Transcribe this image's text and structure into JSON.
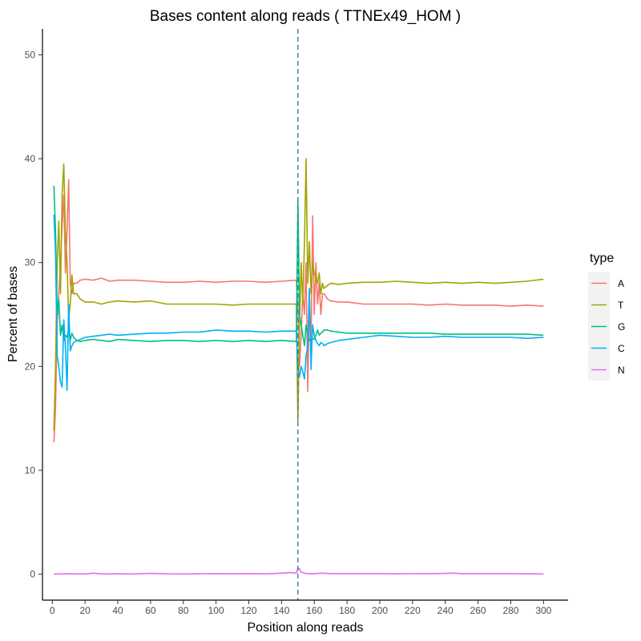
{
  "chart_data": {
    "type": "line",
    "title": "Bases content along reads ( TTNEx49_HOM )",
    "xlabel": "Position along reads",
    "ylabel": "Percent of bases",
    "xlim": [
      -6,
      315
    ],
    "ylim": [
      -2.5,
      52.5
    ],
    "xticks": [
      0,
      20,
      40,
      60,
      80,
      100,
      120,
      140,
      160,
      180,
      200,
      220,
      240,
      260,
      280,
      300
    ],
    "yticks": [
      0,
      10,
      20,
      30,
      40,
      50
    ],
    "grid": false,
    "legend": {
      "title": "type",
      "position": "right"
    },
    "vline": {
      "x": 150,
      "style": "dashed",
      "color": "#3a7fa8"
    },
    "series": [
      {
        "name": "A",
        "color": "#F8766D",
        "points": [
          [
            1,
            12.7
          ],
          [
            2,
            16
          ],
          [
            3,
            24
          ],
          [
            4,
            27
          ],
          [
            5,
            30
          ],
          [
            6,
            33.5
          ],
          [
            7,
            36.5
          ],
          [
            8,
            29
          ],
          [
            9,
            33
          ],
          [
            10,
            38
          ],
          [
            11,
            28
          ],
          [
            12,
            27
          ],
          [
            13,
            28
          ],
          [
            15,
            28
          ],
          [
            17,
            28.3
          ],
          [
            20,
            28.4
          ],
          [
            25,
            28.3
          ],
          [
            30,
            28.5
          ],
          [
            35,
            28.2
          ],
          [
            40,
            28.3
          ],
          [
            50,
            28.3
          ],
          [
            60,
            28.2
          ],
          [
            70,
            28.1
          ],
          [
            80,
            28.1
          ],
          [
            90,
            28.2
          ],
          [
            100,
            28.1
          ],
          [
            110,
            28.2
          ],
          [
            120,
            28.2
          ],
          [
            130,
            28.1
          ],
          [
            140,
            28.2
          ],
          [
            149,
            28.3
          ],
          [
            150,
            26
          ],
          [
            151,
            20
          ],
          [
            152,
            23
          ],
          [
            153,
            27
          ],
          [
            154,
            25
          ],
          [
            155,
            30
          ],
          [
            156,
            17.6
          ],
          [
            157,
            26
          ],
          [
            158,
            22
          ],
          [
            159,
            34.5
          ],
          [
            160,
            25
          ],
          [
            161,
            30
          ],
          [
            162,
            26
          ],
          [
            163,
            28
          ],
          [
            164,
            25
          ],
          [
            165,
            27
          ],
          [
            166,
            27
          ],
          [
            168,
            26.5
          ],
          [
            170,
            26.3
          ],
          [
            175,
            26.2
          ],
          [
            180,
            26.2
          ],
          [
            190,
            26
          ],
          [
            200,
            26
          ],
          [
            210,
            26
          ],
          [
            220,
            26
          ],
          [
            230,
            25.9
          ],
          [
            240,
            26
          ],
          [
            250,
            25.9
          ],
          [
            260,
            25.9
          ],
          [
            270,
            25.9
          ],
          [
            280,
            25.8
          ],
          [
            290,
            25.9
          ],
          [
            300,
            25.8
          ]
        ]
      },
      {
        "name": "T",
        "color": "#A3A500",
        "points": [
          [
            1,
            13.8
          ],
          [
            2,
            20
          ],
          [
            3,
            30
          ],
          [
            4,
            34
          ],
          [
            5,
            27
          ],
          [
            6,
            36.5
          ],
          [
            7,
            39.5
          ],
          [
            8,
            33
          ],
          [
            9,
            30
          ],
          [
            10,
            24.5
          ],
          [
            11,
            26
          ],
          [
            12,
            28.8
          ],
          [
            13,
            27
          ],
          [
            15,
            27
          ],
          [
            17,
            26.5
          ],
          [
            20,
            26.2
          ],
          [
            25,
            26.2
          ],
          [
            30,
            26
          ],
          [
            35,
            26.2
          ],
          [
            40,
            26.3
          ],
          [
            50,
            26.2
          ],
          [
            60,
            26.3
          ],
          [
            70,
            26
          ],
          [
            80,
            26
          ],
          [
            90,
            26
          ],
          [
            100,
            26
          ],
          [
            110,
            25.9
          ],
          [
            120,
            26
          ],
          [
            130,
            26
          ],
          [
            140,
            26
          ],
          [
            149,
            26
          ],
          [
            150,
            14.7
          ],
          [
            151,
            24
          ],
          [
            152,
            30
          ],
          [
            153,
            26
          ],
          [
            154,
            32
          ],
          [
            155,
            40
          ],
          [
            156,
            28
          ],
          [
            157,
            32
          ],
          [
            158,
            27
          ],
          [
            159,
            30
          ],
          [
            160,
            29
          ],
          [
            161,
            28.5
          ],
          [
            162,
            28
          ],
          [
            163,
            29
          ],
          [
            164,
            27
          ],
          [
            165,
            28
          ],
          [
            166,
            27.5
          ],
          [
            168,
            27.8
          ],
          [
            170,
            28
          ],
          [
            175,
            27.9
          ],
          [
            180,
            28
          ],
          [
            190,
            28.1
          ],
          [
            200,
            28.1
          ],
          [
            210,
            28.2
          ],
          [
            220,
            28.1
          ],
          [
            230,
            28
          ],
          [
            240,
            28.1
          ],
          [
            250,
            28
          ],
          [
            260,
            28.1
          ],
          [
            270,
            28
          ],
          [
            280,
            28.1
          ],
          [
            290,
            28.2
          ],
          [
            300,
            28.4
          ]
        ]
      },
      {
        "name": "G",
        "color": "#00BF7D",
        "points": [
          [
            1,
            37.4
          ],
          [
            2,
            33
          ],
          [
            3,
            25
          ],
          [
            4,
            26.5
          ],
          [
            5,
            23
          ],
          [
            6,
            24
          ],
          [
            7,
            22.5
          ],
          [
            8,
            23
          ],
          [
            9,
            22.8
          ],
          [
            10,
            23.5
          ],
          [
            11,
            22.5
          ],
          [
            12,
            23.2
          ],
          [
            13,
            22.8
          ],
          [
            15,
            22.5
          ],
          [
            17,
            22.4
          ],
          [
            20,
            22.5
          ],
          [
            25,
            22.6
          ],
          [
            30,
            22.5
          ],
          [
            35,
            22.4
          ],
          [
            40,
            22.6
          ],
          [
            50,
            22.5
          ],
          [
            60,
            22.4
          ],
          [
            70,
            22.5
          ],
          [
            80,
            22.5
          ],
          [
            90,
            22.4
          ],
          [
            100,
            22.5
          ],
          [
            110,
            22.4
          ],
          [
            120,
            22.5
          ],
          [
            130,
            22.4
          ],
          [
            140,
            22.5
          ],
          [
            149,
            22.4
          ],
          [
            150,
            36
          ],
          [
            151,
            25
          ],
          [
            152,
            24
          ],
          [
            153,
            23
          ],
          [
            154,
            22
          ],
          [
            155,
            24
          ],
          [
            156,
            23
          ],
          [
            157,
            22.5
          ],
          [
            158,
            22.5
          ],
          [
            159,
            22.7
          ],
          [
            160,
            22.6
          ],
          [
            161,
            23
          ],
          [
            162,
            23.5
          ],
          [
            163,
            23
          ],
          [
            164,
            23.2
          ],
          [
            165,
            23.3
          ],
          [
            166,
            23.5
          ],
          [
            168,
            23.5
          ],
          [
            170,
            23.4
          ],
          [
            175,
            23.3
          ],
          [
            180,
            23.2
          ],
          [
            190,
            23.2
          ],
          [
            200,
            23.2
          ],
          [
            210,
            23.2
          ],
          [
            220,
            23.2
          ],
          [
            230,
            23.2
          ],
          [
            240,
            23.1
          ],
          [
            250,
            23.1
          ],
          [
            260,
            23.1
          ],
          [
            270,
            23.1
          ],
          [
            280,
            23.1
          ],
          [
            290,
            23.1
          ],
          [
            300,
            23
          ]
        ]
      },
      {
        "name": "C",
        "color": "#00B0F6",
        "points": [
          [
            1,
            34.6
          ],
          [
            2,
            31
          ],
          [
            3,
            21
          ],
          [
            4,
            20
          ],
          [
            5,
            18.5
          ],
          [
            6,
            18
          ],
          [
            7,
            24.5
          ],
          [
            8,
            22
          ],
          [
            9,
            17.7
          ],
          [
            10,
            26
          ],
          [
            11,
            21.5
          ],
          [
            12,
            22
          ],
          [
            13,
            22.3
          ],
          [
            15,
            22.5
          ],
          [
            17,
            22.6
          ],
          [
            20,
            22.8
          ],
          [
            25,
            22.9
          ],
          [
            30,
            23
          ],
          [
            35,
            23.1
          ],
          [
            40,
            23
          ],
          [
            50,
            23.1
          ],
          [
            60,
            23.2
          ],
          [
            70,
            23.2
          ],
          [
            80,
            23.3
          ],
          [
            90,
            23.3
          ],
          [
            100,
            23.5
          ],
          [
            110,
            23.4
          ],
          [
            120,
            23.4
          ],
          [
            130,
            23.3
          ],
          [
            140,
            23.4
          ],
          [
            149,
            23.4
          ],
          [
            150,
            20
          ],
          [
            151,
            19
          ],
          [
            152,
            20
          ],
          [
            153,
            19.5
          ],
          [
            154,
            18.8
          ],
          [
            155,
            21
          ],
          [
            156,
            22
          ],
          [
            157,
            27.5
          ],
          [
            158,
            19.7
          ],
          [
            159,
            24
          ],
          [
            160,
            23
          ],
          [
            161,
            22.5
          ],
          [
            162,
            22.2
          ],
          [
            163,
            22
          ],
          [
            164,
            22.3
          ],
          [
            165,
            22.2
          ],
          [
            166,
            22
          ],
          [
            168,
            22.2
          ],
          [
            170,
            22.3
          ],
          [
            175,
            22.5
          ],
          [
            180,
            22.6
          ],
          [
            190,
            22.8
          ],
          [
            200,
            23
          ],
          [
            210,
            22.9
          ],
          [
            220,
            22.8
          ],
          [
            230,
            22.8
          ],
          [
            240,
            22.9
          ],
          [
            250,
            22.8
          ],
          [
            260,
            22.8
          ],
          [
            270,
            22.8
          ],
          [
            280,
            22.8
          ],
          [
            290,
            22.7
          ],
          [
            300,
            22.8
          ]
        ]
      },
      {
        "name": "N",
        "color": "#E76BF3",
        "points": [
          [
            1,
            0.02
          ],
          [
            10,
            0.03
          ],
          [
            20,
            0.02
          ],
          [
            25,
            0.1
          ],
          [
            30,
            0.02
          ],
          [
            40,
            0.03
          ],
          [
            50,
            0.02
          ],
          [
            60,
            0.08
          ],
          [
            70,
            0.03
          ],
          [
            80,
            0.02
          ],
          [
            90,
            0.03
          ],
          [
            100,
            0.05
          ],
          [
            110,
            0.03
          ],
          [
            120,
            0.05
          ],
          [
            130,
            0.03
          ],
          [
            140,
            0.1
          ],
          [
            145,
            0.15
          ],
          [
            149,
            0.1
          ],
          [
            150,
            0.6
          ],
          [
            151,
            0.5
          ],
          [
            152,
            0.2
          ],
          [
            155,
            0.05
          ],
          [
            160,
            0.05
          ],
          [
            165,
            0.1
          ],
          [
            170,
            0.05
          ],
          [
            180,
            0.05
          ],
          [
            190,
            0.05
          ],
          [
            200,
            0.05
          ],
          [
            210,
            0.03
          ],
          [
            220,
            0.05
          ],
          [
            230,
            0.05
          ],
          [
            240,
            0.08
          ],
          [
            245,
            0.1
          ],
          [
            250,
            0.05
          ],
          [
            260,
            0.05
          ],
          [
            270,
            0.05
          ],
          [
            280,
            0.05
          ],
          [
            290,
            0.03
          ],
          [
            300,
            0.02
          ]
        ]
      }
    ]
  }
}
